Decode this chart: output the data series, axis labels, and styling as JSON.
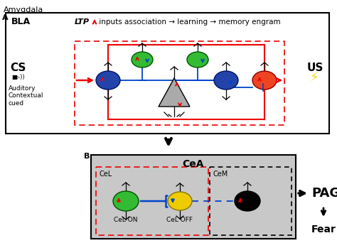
{
  "title": "Amygdala",
  "panel_A_label": "A",
  "panel_B_label": "B",
  "bla_label": "BLA",
  "cea_label": "CeA",
  "cel_label": "CeL",
  "cem_label": "CeM",
  "cs_label": "CS",
  "us_label": "US",
  "auditory_label": "Auditory\nContextual\ncued",
  "ltp_text": "LTP",
  "pathway_text": " inputs association → learning → memory engram",
  "cel_on_label": "CeL ON",
  "cel_off_label": "CeL OFF",
  "pag_label": "PAG",
  "fear_label": "Fear",
  "bg_color": "#ffffff",
  "cea_box_bg": "#c8c8c8",
  "red": "#ee0000",
  "blue": "#0044cc",
  "black": "#000000",
  "green_cell": "#33bb33",
  "yellow_cell": "#eecc00",
  "orange_cell": "#ee4422",
  "navy_cell": "#2244aa",
  "triangle_color": "#aaaaaa"
}
